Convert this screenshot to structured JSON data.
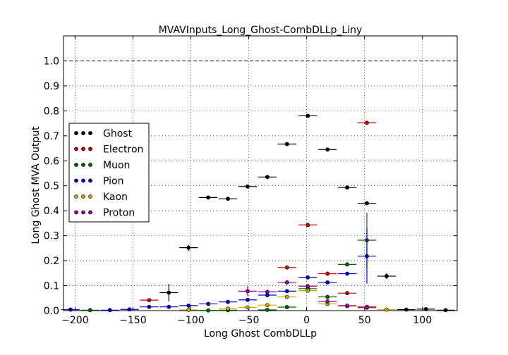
{
  "chart_data": {
    "type": "scatter",
    "title": "MVAVInputs_Long_Ghost-CombDLLp_Liny",
    "xlabel": "Long Ghost CombDLLp",
    "ylabel": "Long Ghost MVA Output",
    "xlim": [
      -210,
      130
    ],
    "ylim": [
      0,
      1.1
    ],
    "x_ticks": [
      -200,
      -150,
      -100,
      -50,
      0,
      50,
      100
    ],
    "x_tick_labels": [
      "−200",
      "−150",
      "−100",
      "−50",
      "0",
      "50",
      "100"
    ],
    "y_ticks": [
      0.0,
      0.1,
      0.2,
      0.3,
      0.4,
      0.5,
      0.6,
      0.7,
      0.8,
      0.9,
      1.0
    ],
    "y_tick_labels": [
      "0.0",
      "0.1",
      "0.2",
      "0.3",
      "0.4",
      "0.5",
      "0.6",
      "0.7",
      "0.8",
      "0.9",
      "1.0"
    ],
    "reference_line": 1.0,
    "grid": true,
    "legend_position": "center-left",
    "series": [
      {
        "name": "Ghost",
        "color": "#000000",
        "points": [
          {
            "x": -119,
            "y": 0.072,
            "ex": 8,
            "ey": 0.035
          },
          {
            "x": -102,
            "y": 0.252,
            "ex": 8,
            "ey": 0.012
          },
          {
            "x": -85,
            "y": 0.453,
            "ex": 8,
            "ey": 0.005
          },
          {
            "x": -68,
            "y": 0.448,
            "ex": 8,
            "ey": 0.004
          },
          {
            "x": -51,
            "y": 0.497,
            "ex": 8,
            "ey": 0.004
          },
          {
            "x": -34,
            "y": 0.535,
            "ex": 8,
            "ey": 0.004
          },
          {
            "x": -17,
            "y": 0.667,
            "ex": 8,
            "ey": 0.004
          },
          {
            "x": 1,
            "y": 0.78,
            "ex": 8,
            "ey": 0.004
          },
          {
            "x": 18,
            "y": 0.645,
            "ex": 8,
            "ey": 0.004
          },
          {
            "x": 35,
            "y": 0.493,
            "ex": 8,
            "ey": 0.004
          },
          {
            "x": 52,
            "y": 0.43,
            "ex": 8,
            "ey": 0.005
          },
          {
            "x": 69,
            "y": 0.138,
            "ex": 8,
            "ey": 0.012
          },
          {
            "x": 86,
            "y": 0.004,
            "ex": 8,
            "ey": 0.003
          },
          {
            "x": 103,
            "y": 0.006,
            "ex": 8,
            "ey": 0.003
          },
          {
            "x": 120,
            "y": 0.002,
            "ex": 8,
            "ey": 0.002
          }
        ]
      },
      {
        "name": "Electron",
        "color": "#cc0000",
        "points": [
          {
            "x": -136,
            "y": 0.042,
            "ex": 8,
            "ey": 0.005
          },
          {
            "x": -17,
            "y": 0.173,
            "ex": 8,
            "ey": 0.005
          },
          {
            "x": 1,
            "y": 0.343,
            "ex": 8,
            "ey": 0.005
          },
          {
            "x": 18,
            "y": 0.148,
            "ex": 8,
            "ey": 0.004
          },
          {
            "x": 35,
            "y": 0.07,
            "ex": 8,
            "ey": 0.004
          },
          {
            "x": 52,
            "y": 0.752,
            "ex": 8,
            "ey": 0.006
          },
          {
            "x": 52,
            "y": 0.012,
            "ex": 8,
            "ey": 0.003
          }
        ]
      },
      {
        "name": "Muon",
        "color": "#006600",
        "points": [
          {
            "x": -187,
            "y": 0.002,
            "ex": 8,
            "ey": 0.002
          },
          {
            "x": -85,
            "y": 0.001,
            "ex": 8,
            "ey": 0.001
          },
          {
            "x": -68,
            "y": 0.002,
            "ex": 8,
            "ey": 0.001
          },
          {
            "x": -34,
            "y": 0.003,
            "ex": 8,
            "ey": 0.002
          },
          {
            "x": -17,
            "y": 0.014,
            "ex": 8,
            "ey": 0.003
          },
          {
            "x": 1,
            "y": 0.088,
            "ex": 8,
            "ey": 0.01
          },
          {
            "x": 18,
            "y": 0.055,
            "ex": 8,
            "ey": 0.005
          },
          {
            "x": 35,
            "y": 0.185,
            "ex": 8,
            "ey": 0.006
          },
          {
            "x": 52,
            "y": 0.282,
            "ex": 8,
            "ey": 0.11
          }
        ]
      },
      {
        "name": "Pion",
        "color": "#0000cc",
        "points": [
          {
            "x": -204,
            "y": 0.004,
            "ex": 8,
            "ey": 0.002
          },
          {
            "x": -170,
            "y": 0.002,
            "ex": 8,
            "ey": 0.002
          },
          {
            "x": -153,
            "y": 0.005,
            "ex": 8,
            "ey": 0.002
          },
          {
            "x": -136,
            "y": 0.015,
            "ex": 8,
            "ey": 0.003
          },
          {
            "x": -119,
            "y": 0.015,
            "ex": 8,
            "ey": 0.003
          },
          {
            "x": -102,
            "y": 0.02,
            "ex": 8,
            "ey": 0.003
          },
          {
            "x": -85,
            "y": 0.027,
            "ex": 8,
            "ey": 0.003
          },
          {
            "x": -68,
            "y": 0.035,
            "ex": 8,
            "ey": 0.003
          },
          {
            "x": -51,
            "y": 0.043,
            "ex": 8,
            "ey": 0.003
          },
          {
            "x": -34,
            "y": 0.062,
            "ex": 8,
            "ey": 0.003
          },
          {
            "x": -17,
            "y": 0.078,
            "ex": 8,
            "ey": 0.003
          },
          {
            "x": 1,
            "y": 0.133,
            "ex": 8,
            "ey": 0.004
          },
          {
            "x": 18,
            "y": 0.113,
            "ex": 8,
            "ey": 0.004
          },
          {
            "x": 35,
            "y": 0.148,
            "ex": 8,
            "ey": 0.005
          },
          {
            "x": 52,
            "y": 0.218,
            "ex": 8,
            "ey": 0.11
          }
        ]
      },
      {
        "name": "Kaon",
        "color": "#ccaa00",
        "points": [
          {
            "x": -102,
            "y": 0.003,
            "ex": 8,
            "ey": 0.002
          },
          {
            "x": -68,
            "y": 0.008,
            "ex": 8,
            "ey": 0.003
          },
          {
            "x": -51,
            "y": 0.013,
            "ex": 8,
            "ey": 0.003
          },
          {
            "x": -34,
            "y": 0.022,
            "ex": 8,
            "ey": 0.003
          },
          {
            "x": -17,
            "y": 0.055,
            "ex": 8,
            "ey": 0.004
          },
          {
            "x": 1,
            "y": 0.08,
            "ex": 8,
            "ey": 0.005
          },
          {
            "x": 18,
            "y": 0.027,
            "ex": 8,
            "ey": 0.004
          },
          {
            "x": 35,
            "y": 0.018,
            "ex": 8,
            "ey": 0.003
          },
          {
            "x": 69,
            "y": 0.004,
            "ex": 8,
            "ey": 0.002
          }
        ]
      },
      {
        "name": "Proton",
        "color": "#990099",
        "points": [
          {
            "x": -51,
            "y": 0.078,
            "ex": 8,
            "ey": 0.02
          },
          {
            "x": -34,
            "y": 0.075,
            "ex": 8,
            "ey": 0.008
          },
          {
            "x": -17,
            "y": 0.113,
            "ex": 8,
            "ey": 0.005
          },
          {
            "x": 1,
            "y": 0.098,
            "ex": 8,
            "ey": 0.005
          },
          {
            "x": 18,
            "y": 0.037,
            "ex": 8,
            "ey": 0.004
          },
          {
            "x": 35,
            "y": 0.02,
            "ex": 8,
            "ey": 0.003
          },
          {
            "x": 52,
            "y": 0.015,
            "ex": 8,
            "ey": 0.003
          }
        ]
      }
    ]
  }
}
